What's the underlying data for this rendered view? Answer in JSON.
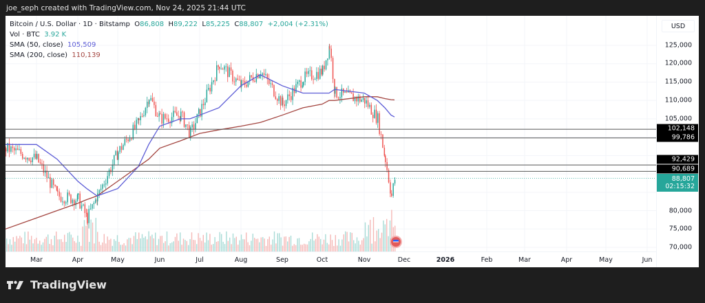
{
  "attribution": "joe_seph created with TradingView.com, Nov 24, 2025 21:44 UTC",
  "legend": {
    "symbol": "Bitcoin / U.S. Dollar · 1D · Bitstamp",
    "open_label": "O",
    "open": "86,808",
    "high_label": "H",
    "high": "89,222",
    "low_label": "L",
    "low": "85,225",
    "close_label": "C",
    "close": "88,807",
    "change": "+2,004 (+2.31%)",
    "volume_label": "Vol · BTC",
    "volume": "3.92 K",
    "sma50_label": "SMA (50, close)",
    "sma50": "105,509",
    "sma200_label": "SMA (200, close)",
    "sma200": "110,139"
  },
  "price_axis": {
    "currency": "USD",
    "ticks": [
      "125,000",
      "120,000",
      "115,000",
      "110,000",
      "105,000",
      "80,000",
      "75,000",
      "70,000"
    ],
    "level_tags": [
      "102,148",
      "99,786",
      "92,429",
      "90,689"
    ],
    "last_price": "88,807",
    "countdown": "02:15:32"
  },
  "time_axis": [
    "Mar",
    "Apr",
    "May",
    "Jun",
    "Jul",
    "Aug",
    "Sep",
    "Oct",
    "Nov",
    "Dec",
    "2026",
    "Feb",
    "Mar",
    "Apr",
    "May",
    "Jun"
  ],
  "footer": {
    "brand": "TradingView"
  },
  "colors": {
    "up": "#26a69a",
    "down": "#ef5350",
    "sma50": "#5b5bd6",
    "sma200": "#a3443f",
    "last_price": "#26a69a"
  },
  "chart_data": {
    "type": "line",
    "title": "Bitcoin / U.S. Dollar · 1D · Bitstamp",
    "xlabel": "",
    "ylabel": "USD",
    "ylim": [
      68000,
      128000
    ],
    "grid": true,
    "x": [
      "Feb-15",
      "Mar-01",
      "Mar-15",
      "Apr-01",
      "Apr-08",
      "Apr-15",
      "May-01",
      "May-15",
      "May-22",
      "Jun-01",
      "Jun-15",
      "Jun-22",
      "Jul-01",
      "Jul-14",
      "Aug-01",
      "Aug-14",
      "Sep-01",
      "Sep-15",
      "Oct-01",
      "Oct-06",
      "Oct-10",
      "Nov-01",
      "Nov-10",
      "Nov-15",
      "Nov-21",
      "Nov-24"
    ],
    "series": [
      {
        "name": "BTC/USD close (approx.)",
        "values": [
          97000,
          94000,
          84000,
          83000,
          78000,
          84000,
          96000,
          104000,
          111000,
          105000,
          106000,
          101000,
          107000,
          120000,
          114000,
          118000,
          109000,
          116000,
          118000,
          125000,
          112000,
          110000,
          105000,
          94000,
          84000,
          88807
        ]
      },
      {
        "name": "SMA (50, close)",
        "values": [
          98000,
          98000,
          94000,
          88000,
          86000,
          84000,
          86000,
          92000,
          98000,
          103000,
          105000,
          105000,
          106000,
          108000,
          114000,
          117000,
          114000,
          112000,
          112000,
          112000,
          113000,
          112000,
          110000,
          108000,
          106000,
          105509
        ]
      },
      {
        "name": "SMA (200, close)",
        "values": [
          75000,
          78000,
          80000,
          82000,
          83000,
          84000,
          88000,
          92000,
          94000,
          97000,
          99000,
          100000,
          101000,
          102000,
          103000,
          104000,
          106000,
          108000,
          109000,
          110000,
          110000,
          111000,
          111000,
          110500,
          110200,
          110139
        ]
      }
    ],
    "horizontal_levels": [
      102148,
      99786,
      92429,
      90689
    ],
    "last": {
      "price": 88807,
      "countdown": "02:15:32"
    },
    "volume_last": "3.92 K"
  }
}
